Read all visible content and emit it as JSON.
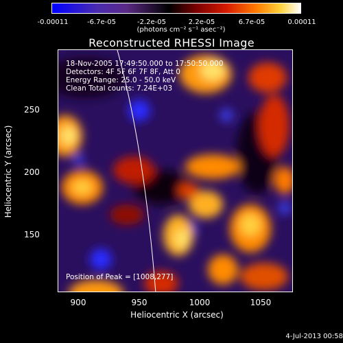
{
  "colorbar": {
    "ticks": [
      "-0.00011",
      "-6.7e-05",
      "-2.2e-05",
      "2.2e-05",
      "6.7e-05",
      "0.00011"
    ],
    "units": "(photons cm⁻² s⁻¹ asec⁻²)"
  },
  "chart_data": {
    "type": "heatmap",
    "title": "Reconstructed RHESSI Image",
    "xlabel": "Heliocentric X (arcsec)",
    "ylabel": "Heliocentric Y (arcsec)",
    "x_ticks": [
      "900",
      "950",
      "1000",
      "1050"
    ],
    "y_ticks": [
      "250",
      "200",
      "150"
    ],
    "xlim": [
      880,
      1072
    ],
    "ylim": [
      103,
      298
    ],
    "peak": {
      "x": 1008,
      "y": 277
    },
    "annotations": [
      "18-Nov-2005 17:49:50.000 to 17:50:50.000",
      "Detectors: 4F 5F 6F 7F 8F, Att 0",
      "Energy Range: 25.0 - 50.0 keV",
      "Clean     Total counts: 7.24E+03"
    ],
    "peak_label": "Position of Peak = [1008,277]"
  },
  "footer": {
    "date": "4-Jul-2013 00:58"
  }
}
